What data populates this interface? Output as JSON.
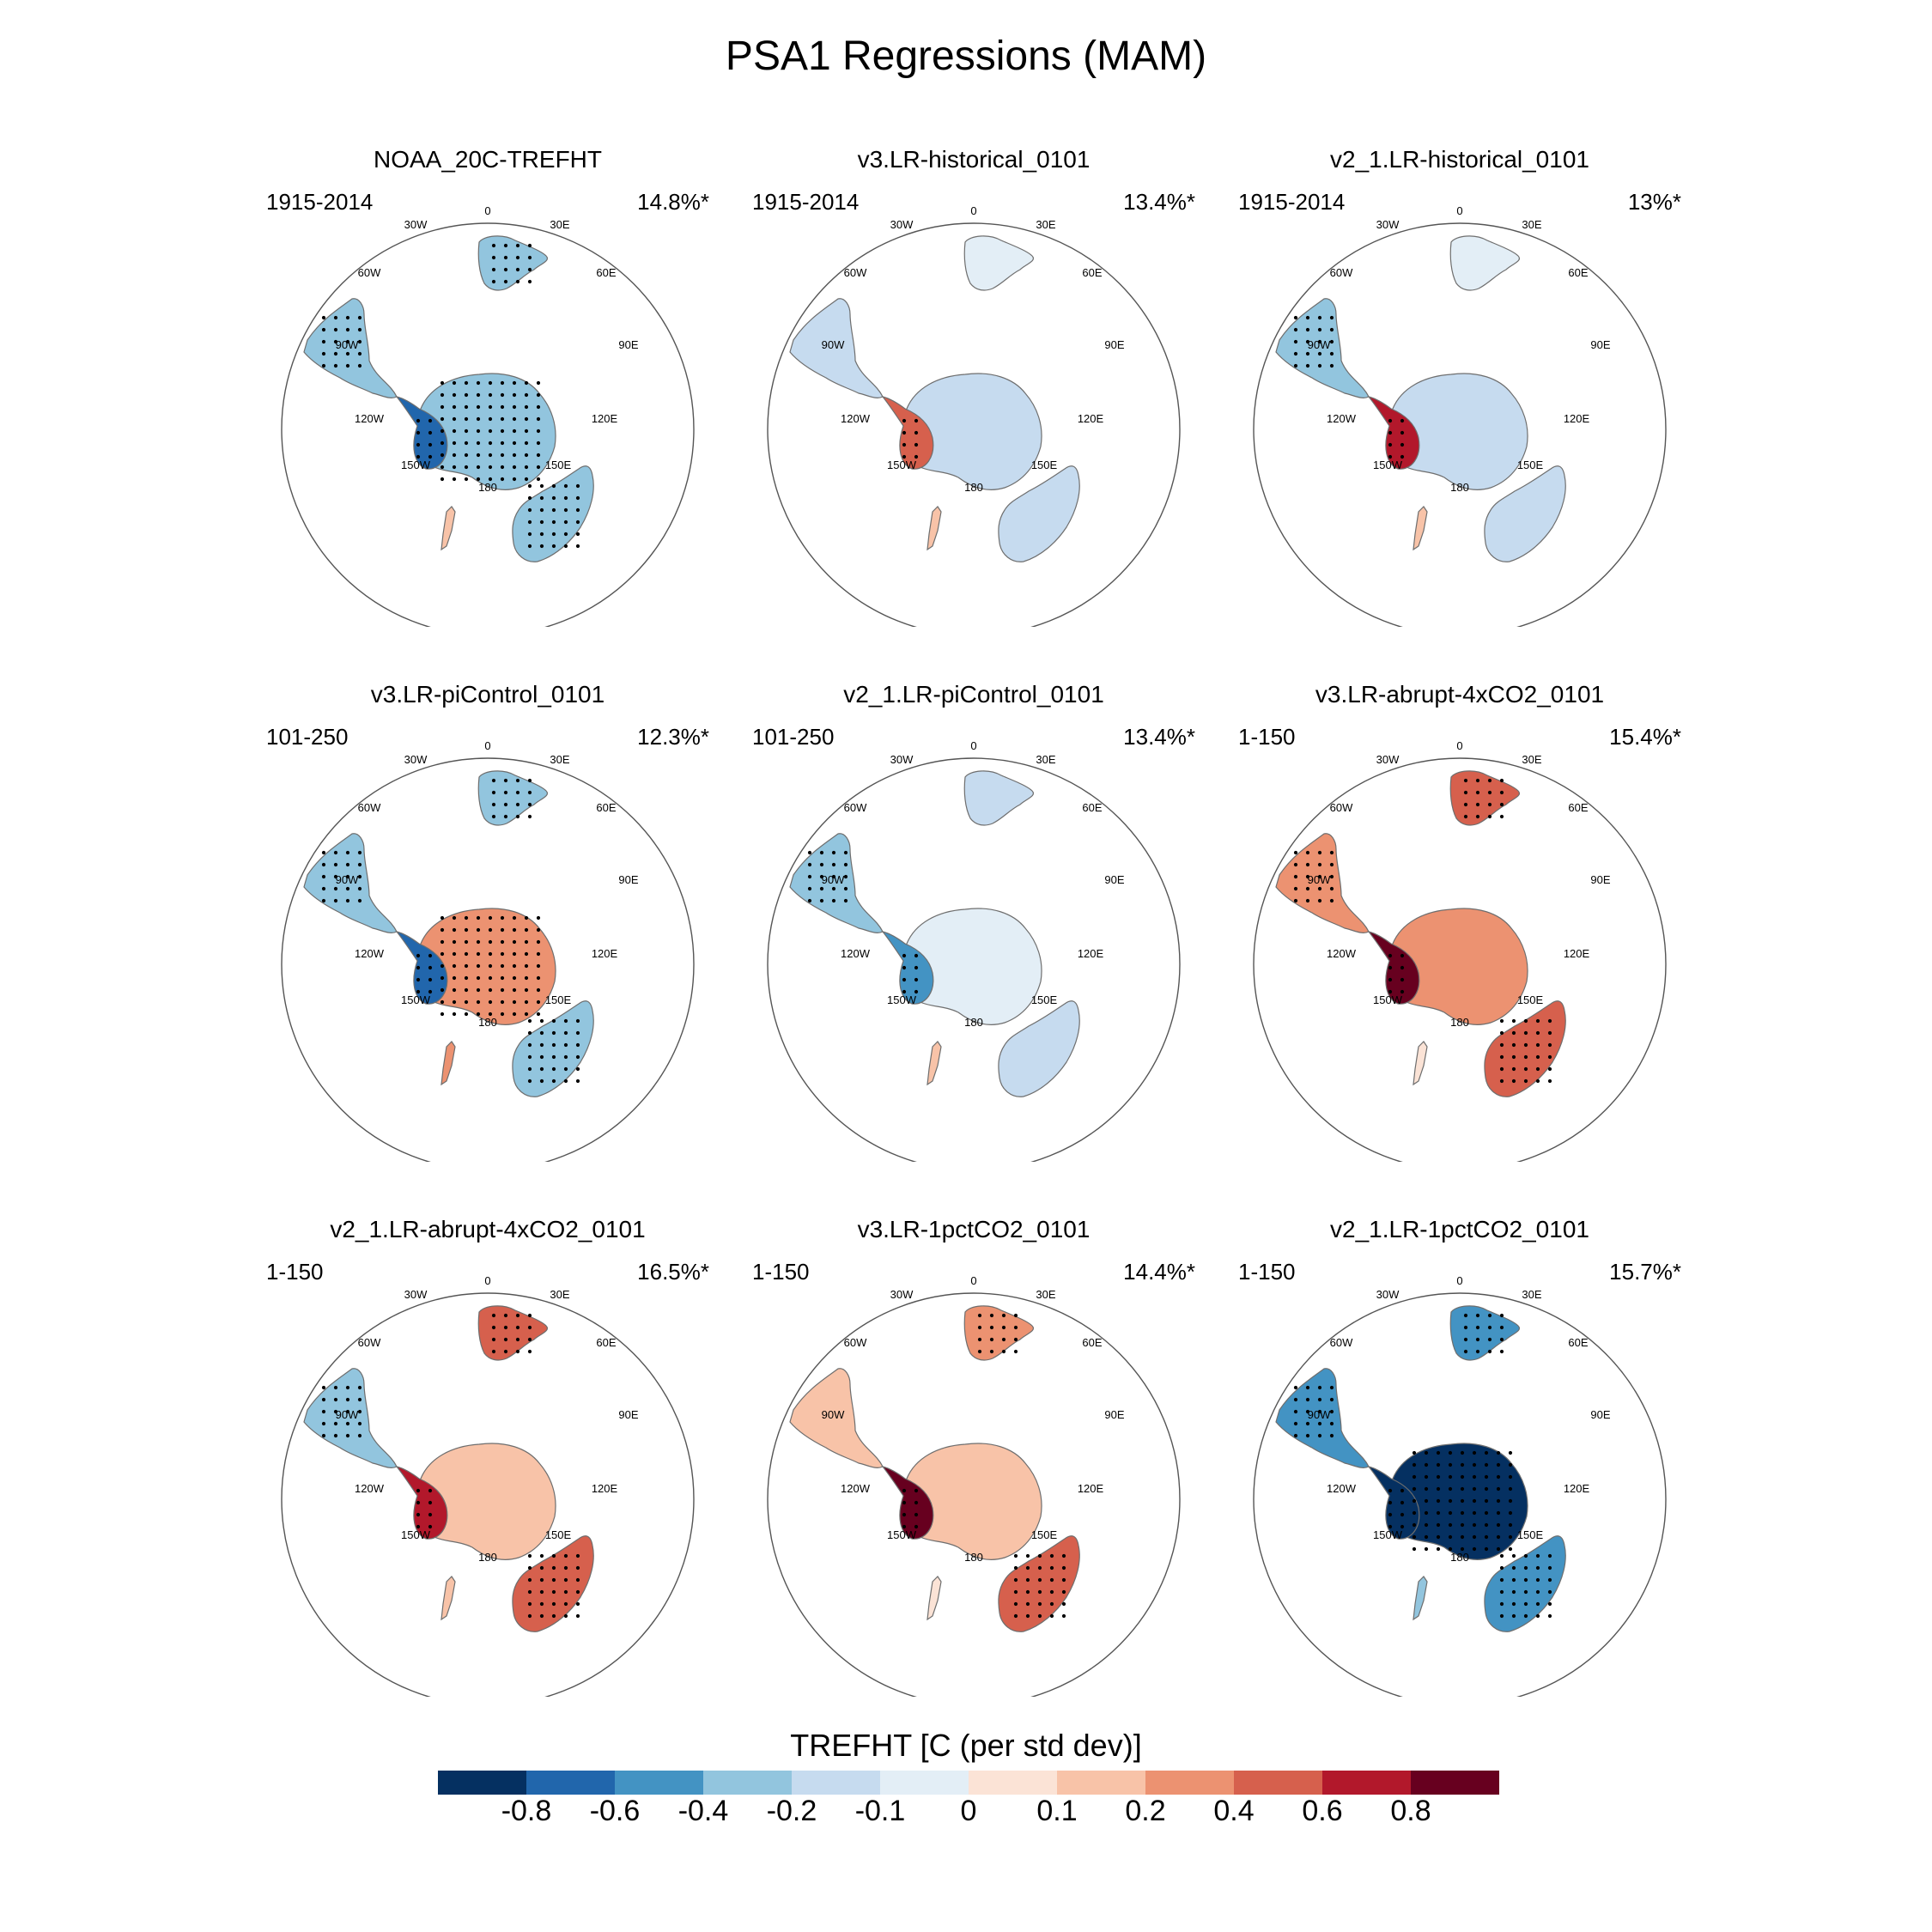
{
  "chart_data": {
    "type": "heatmap",
    "title": "PSA1 Regressions (MAM)",
    "projection": "south polar stereographic",
    "lon_labels": [
      "0",
      "30E",
      "60E",
      "90E",
      "120E",
      "150E",
      "180",
      "150W",
      "120W",
      "90W",
      "60W",
      "30W"
    ],
    "colorbar": {
      "title": "TREFHT [C (per std dev)]",
      "tick_labels": [
        "-0.8",
        "-0.6",
        "-0.4",
        "-0.2",
        "-0.1",
        "0",
        "0.1",
        "0.2",
        "0.4",
        "0.6",
        "0.8"
      ],
      "colors": [
        "#053061",
        "#2166ac",
        "#4393c3",
        "#92c5de",
        "#c6dbef",
        "#e3eef6",
        "#fbe3d6",
        "#f8c3a8",
        "#ec9271",
        "#d6604d",
        "#b2182b",
        "#67001f"
      ]
    },
    "panels": [
      {
        "title": "NOAA_20C-TREFHT",
        "period": "1915-2014",
        "pct": "14.8%*",
        "regions": {
          "antarctica": -0.4,
          "antarctic_peninsula": -0.7,
          "south_america": -0.4,
          "africa": -0.4,
          "australia": -0.4,
          "new_zealand": 0.1
        },
        "stippled": true
      },
      {
        "title": "v3.LR-historical_0101",
        "period": "1915-2014",
        "pct": "13.4%*",
        "regions": {
          "antarctica": -0.2,
          "antarctic_peninsula": 0.5,
          "south_america": -0.15,
          "africa": -0.05,
          "australia": -0.15,
          "new_zealand": 0.1
        },
        "stippled": true
      },
      {
        "title": "v2_1.LR-historical_0101",
        "period": "1915-2014",
        "pct": "13%*",
        "regions": {
          "antarctica": -0.15,
          "antarctic_peninsula": 0.7,
          "south_america": -0.4,
          "africa": -0.05,
          "australia": -0.2,
          "new_zealand": 0.1
        },
        "stippled": true
      },
      {
        "title": "v3.LR-piControl_0101",
        "period": "101-250",
        "pct": "12.3%*",
        "regions": {
          "antarctica": 0.3,
          "antarctic_peninsula": -0.8,
          "south_america": -0.3,
          "africa": -0.3,
          "australia": -0.3,
          "new_zealand": 0.2
        },
        "stippled": true
      },
      {
        "title": "v2_1.LR-piControl_0101",
        "period": "101-250",
        "pct": "13.4%*",
        "regions": {
          "antarctica": -0.1,
          "antarctic_peninsula": -0.5,
          "south_america": -0.3,
          "africa": -0.15,
          "australia": -0.15,
          "new_zealand": 0.1
        },
        "stippled": true
      },
      {
        "title": "v3.LR-abrupt-4xCO2_0101",
        "period": "1-150",
        "pct": "15.4%*",
        "regions": {
          "antarctica": 0.2,
          "antarctic_peninsula": 0.8,
          "south_america": 0.3,
          "africa": 0.5,
          "australia": 0.5,
          "new_zealand": 0.0
        },
        "stippled": true
      },
      {
        "title": "v2_1.LR-abrupt-4xCO2_0101",
        "period": "1-150",
        "pct": "16.5%*",
        "regions": {
          "antarctica": 0.1,
          "antarctic_peninsula": 0.7,
          "south_america": -0.3,
          "africa": 0.4,
          "australia": 0.5,
          "new_zealand": 0.1
        },
        "stippled": true
      },
      {
        "title": "v3.LR-1pctCO2_0101",
        "period": "1-150",
        "pct": "14.4%*",
        "regions": {
          "antarctica": 0.1,
          "antarctic_peninsula": 0.8,
          "south_america": 0.15,
          "africa": 0.3,
          "australia": 0.45,
          "new_zealand": 0.0
        },
        "stippled": true
      },
      {
        "title": "v2_1.LR-1pctCO2_0101",
        "period": "1-150",
        "pct": "15.7%*",
        "regions": {
          "antarctica": -0.9,
          "antarctic_peninsula": -0.9,
          "south_america": -0.5,
          "africa": -0.5,
          "australia": -0.5,
          "new_zealand": -0.3
        },
        "stippled": true
      }
    ]
  }
}
